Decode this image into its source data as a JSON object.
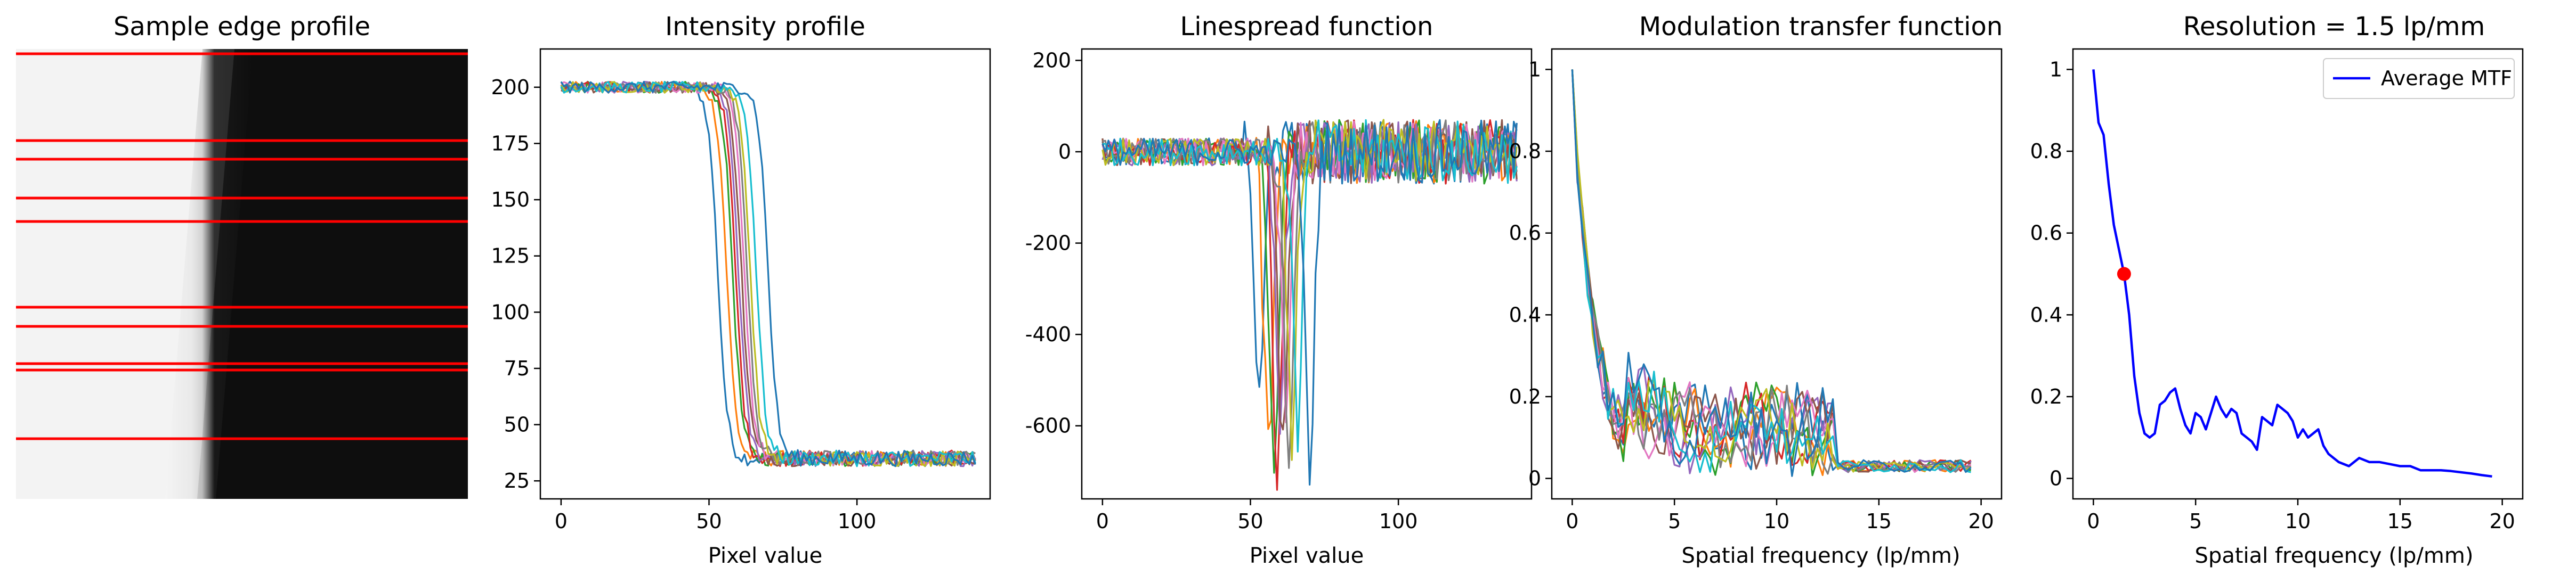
{
  "chart_data": [
    {
      "type": "image",
      "title": "Sample edge profile",
      "line_color": "#ff0000",
      "line_count": 11,
      "edge_colors": {
        "bright": "#f2f2f2",
        "dark": "#0d0d0d"
      }
    },
    {
      "type": "line",
      "title": "Intensity profile",
      "xlabel": "Pixel value",
      "ylabel": "",
      "xlim": [
        -7,
        145
      ],
      "ylim": [
        17,
        217
      ],
      "xticks": [
        0,
        50,
        100
      ],
      "yticks": [
        25,
        50,
        75,
        100,
        125,
        150,
        175,
        200
      ],
      "num_series": 11,
      "description_values": {
        "plateau_high": 200,
        "plateau_low": 35,
        "edge_positions": [
          53,
          56,
          58,
          59,
          60,
          61,
          62,
          63,
          64,
          66,
          70
        ]
      }
    },
    {
      "type": "line",
      "title": "Linespread function",
      "xlabel": "Pixel value",
      "ylabel": "",
      "xlim": [
        -7,
        145
      ],
      "ylim": [
        -760,
        225
      ],
      "xticks": [
        0,
        50,
        100
      ],
      "yticks": [
        -600,
        -400,
        -200,
        0,
        200
      ],
      "num_series": 11,
      "description_values": {
        "min_values": [
          -560,
          -640,
          -700,
          -720,
          -600,
          -650,
          -580,
          -660,
          -620,
          -600,
          -690
        ]
      }
    },
    {
      "type": "line",
      "title": "Modulation transfer function",
      "xlabel": "Spatial frequency (lp/mm)",
      "ylabel": "",
      "xlim": [
        -1,
        21
      ],
      "ylim": [
        -0.05,
        1.05
      ],
      "xticks": [
        0,
        5,
        10,
        15,
        20
      ],
      "yticks": [
        0.0,
        0.2,
        0.4,
        0.6,
        0.8,
        1.0
      ],
      "num_series": 11
    },
    {
      "type": "line",
      "title": "Resolution = 1.5 lp/mm",
      "xlabel": "Spatial frequency (lp/mm)",
      "ylabel": "",
      "xlim": [
        -1,
        21
      ],
      "ylim": [
        -0.05,
        1.05
      ],
      "xticks": [
        0,
        5,
        10,
        15,
        20
      ],
      "yticks": [
        0.0,
        0.2,
        0.4,
        0.6,
        0.8,
        1.0
      ],
      "legend": {
        "label": "Average MTF",
        "placement": "top-right"
      },
      "series_color": "#0000ff",
      "marker": {
        "x": 1.5,
        "y": 0.5,
        "color": "#ff0000"
      },
      "x": [
        0,
        0.25,
        0.5,
        0.75,
        1.0,
        1.25,
        1.5,
        1.75,
        2.0,
        2.25,
        2.5,
        2.75,
        3.0,
        3.25,
        3.5,
        3.75,
        4.0,
        4.25,
        4.5,
        4.75,
        5.0,
        5.25,
        5.5,
        5.75,
        6.0,
        6.25,
        6.5,
        6.75,
        7.0,
        7.25,
        7.5,
        7.75,
        8.0,
        8.25,
        8.5,
        8.75,
        9.0,
        9.25,
        9.5,
        9.75,
        10.0,
        10.25,
        10.5,
        10.75,
        11.0,
        11.25,
        11.5,
        11.75,
        12.0,
        12.5,
        13.0,
        13.5,
        14.0,
        14.5,
        15.0,
        15.5,
        16.0,
        16.5,
        17.0,
        17.5,
        18.0,
        18.5,
        19.0,
        19.5
      ],
      "y": [
        1.0,
        0.87,
        0.84,
        0.72,
        0.62,
        0.56,
        0.5,
        0.4,
        0.25,
        0.16,
        0.11,
        0.1,
        0.11,
        0.18,
        0.19,
        0.21,
        0.22,
        0.17,
        0.13,
        0.11,
        0.16,
        0.15,
        0.12,
        0.16,
        0.2,
        0.17,
        0.15,
        0.17,
        0.16,
        0.11,
        0.1,
        0.09,
        0.07,
        0.15,
        0.14,
        0.13,
        0.18,
        0.17,
        0.16,
        0.14,
        0.1,
        0.12,
        0.1,
        0.11,
        0.12,
        0.08,
        0.06,
        0.05,
        0.04,
        0.03,
        0.05,
        0.04,
        0.04,
        0.035,
        0.03,
        0.03,
        0.02,
        0.02,
        0.02,
        0.018,
        0.015,
        0.012,
        0.008,
        0.005
      ]
    }
  ]
}
